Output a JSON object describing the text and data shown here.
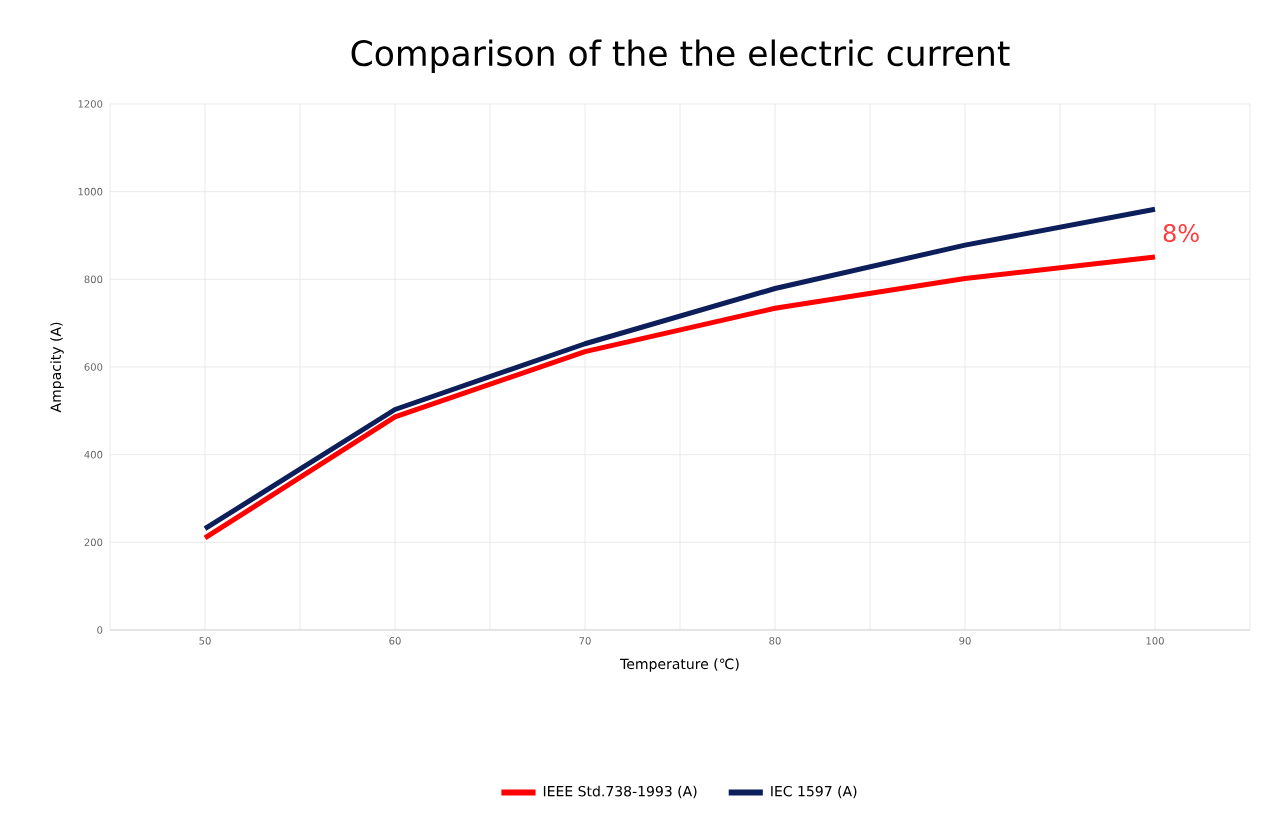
{
  "chart_data": {
    "type": "line",
    "title": "Comparison of the the electric current",
    "xlabel": "Temperature (℃)",
    "ylabel": "Ampacity (A)",
    "categories": [
      "50",
      "60",
      "70",
      "80",
      "90",
      "100"
    ],
    "series": [
      {
        "name": "IEEE Std.738-1993 (A)",
        "color": "#ff0000",
        "values": [
          210,
          486,
          635,
          734,
          802,
          851
        ]
      },
      {
        "name": "IEC 1597 (A)",
        "color": "#0d1f5a",
        "values": [
          231,
          503,
          653,
          779,
          878,
          960
        ]
      }
    ],
    "ylim": [
      0,
      1200
    ],
    "yticks": [
      0,
      200,
      400,
      600,
      800,
      1000,
      1200
    ],
    "grid": true,
    "legend": "bottom",
    "marker": "none",
    "line_style": "solid",
    "annotations": [
      "8%"
    ]
  }
}
